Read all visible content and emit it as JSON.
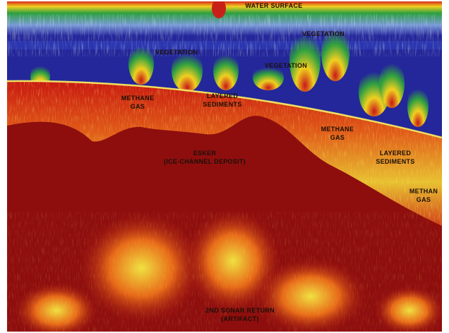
{
  "annotations": [
    {
      "lines": [
        "WATER SURFACE"
      ]
    },
    {
      "lines": [
        "VEGETATION"
      ]
    },
    {
      "lines": [
        "VEGETATION"
      ]
    },
    {
      "lines": [
        "VEGETATION"
      ]
    },
    {
      "lines": [
        "METHANE",
        "GAS"
      ]
    },
    {
      "lines": [
        "LAYERED",
        "SEDIMENTS"
      ]
    },
    {
      "lines": [
        "METHANE",
        "GAS"
      ]
    },
    {
      "lines": [
        "LAYERED",
        "SEDIMENTS"
      ]
    },
    {
      "lines": [
        "METHAN",
        "GAS"
      ]
    },
    {
      "lines": [
        "ESKER",
        "(ICE-CHANNEL DEPOSIT)"
      ]
    },
    {
      "lines": [
        "2ND SONAR RETURN",
        "(ARTIFACT)"
      ]
    }
  ]
}
